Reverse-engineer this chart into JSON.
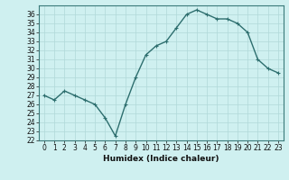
{
  "x": [
    0,
    1,
    2,
    3,
    4,
    5,
    6,
    7,
    8,
    9,
    10,
    11,
    12,
    13,
    14,
    15,
    16,
    17,
    18,
    19,
    20,
    21,
    22,
    23
  ],
  "y": [
    27,
    26.5,
    27.5,
    27,
    26.5,
    26,
    24.5,
    22.5,
    26,
    29,
    31.5,
    32.5,
    33,
    34.5,
    36,
    36.5,
    36,
    35.5,
    35.5,
    35,
    34,
    31,
    30,
    29.5
  ],
  "line_color": "#2d6e6e",
  "marker": "+",
  "marker_size": 3,
  "bg_color": "#cff0f0",
  "grid_color": "#b0d8d8",
  "xlabel": "Humidex (Indice chaleur)",
  "xlim": [
    -0.5,
    23.5
  ],
  "ylim": [
    22,
    37
  ],
  "yticks": [
    22,
    23,
    24,
    25,
    26,
    27,
    28,
    29,
    30,
    31,
    32,
    33,
    34,
    35,
    36
  ],
  "xticks": [
    0,
    1,
    2,
    3,
    4,
    5,
    6,
    7,
    8,
    9,
    10,
    11,
    12,
    13,
    14,
    15,
    16,
    17,
    18,
    19,
    20,
    21,
    22,
    23
  ],
  "tick_fontsize": 5.5,
  "label_fontsize": 6.5,
  "linewidth": 1.0
}
